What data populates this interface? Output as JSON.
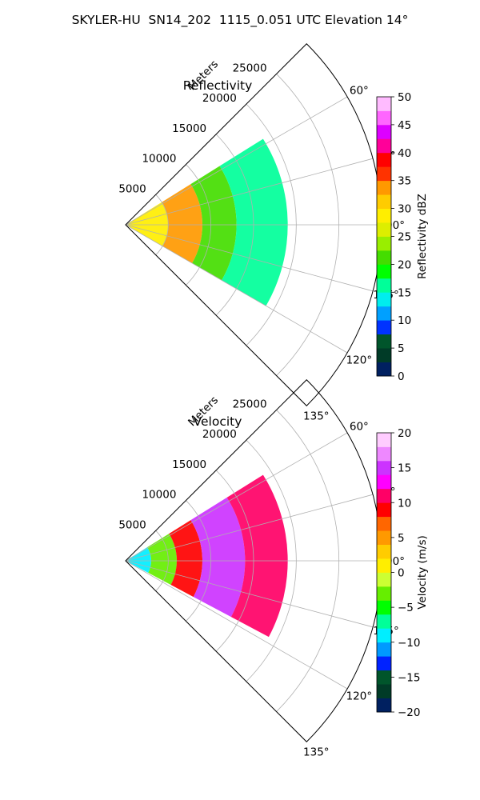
{
  "figure": {
    "suptitle": "SKYLER-HU  SN14_202  1115_0.051 UTC Elevation 14°"
  },
  "chart_data": [
    {
      "type": "polar-sector-heatmap",
      "title": "Reflectivity",
      "radial_label": "Meters",
      "radial_ticks": [
        5000,
        10000,
        15000,
        20000,
        25000
      ],
      "r_max": 30000,
      "angle_ticks": [
        "60°",
        "75°",
        "90°",
        "105°",
        "120°",
        "135°"
      ],
      "angle_tick_values": [
        60,
        75,
        90,
        105,
        120,
        135
      ],
      "sector_deg": [
        45,
        135
      ],
      "grid": true,
      "data_extent": {
        "r_max": 19000,
        "azimuth_range": [
          58,
          120
        ]
      },
      "data_summary": [
        {
          "r_range": [
            0,
            5000
          ],
          "value": 28
        },
        {
          "r_range": [
            5000,
            9000
          ],
          "value": 34
        },
        {
          "r_range": [
            9000,
            13000
          ],
          "value": 22
        },
        {
          "r_range": [
            13000,
            19000
          ],
          "value": 17
        }
      ],
      "colorbar": {
        "label": "Reflectivity dBZ",
        "ticks": [
          "0",
          "5",
          "10",
          "15",
          "20",
          "25",
          "30",
          "35",
          "40",
          "45",
          "50"
        ],
        "range": [
          0,
          50
        ],
        "colors": [
          "#002060",
          "#003b27",
          "#00552b",
          "#0033ff",
          "#00a0ff",
          "#00eeee",
          "#00ff99",
          "#00ff00",
          "#44dd00",
          "#99ee00",
          "#ddee00",
          "#ffee00",
          "#ffcc00",
          "#ff9900",
          "#ff3300",
          "#ff0000",
          "#ff0099",
          "#dd00ff",
          "#ff66ff",
          "#ffbbff"
        ]
      }
    },
    {
      "type": "polar-sector-heatmap",
      "title": "Velocity",
      "radial_label": "Meters",
      "radial_ticks": [
        5000,
        10000,
        15000,
        20000,
        25000
      ],
      "r_max": 30000,
      "angle_ticks": [
        "60°",
        "75°",
        "90°",
        "105°",
        "120°",
        "135°"
      ],
      "angle_tick_values": [
        60,
        75,
        90,
        105,
        120,
        135
      ],
      "sector_deg": [
        45,
        135
      ],
      "grid": true,
      "data_extent": {
        "r_max": 19000,
        "azimuth_range": [
          58,
          118
        ]
      },
      "data_summary": [
        {
          "r_range": [
            0,
            3000
          ],
          "value": -10
        },
        {
          "r_range": [
            3000,
            6000
          ],
          "value": -3
        },
        {
          "r_range": [
            6000,
            9000
          ],
          "value": 8
        },
        {
          "r_range": [
            9000,
            14000
          ],
          "value": 14
        },
        {
          "r_range": [
            14000,
            19000
          ],
          "value": 10
        }
      ],
      "colorbar": {
        "label": "Velocity (m/s)",
        "ticks": [
          "−20",
          "−15",
          "−10",
          "−5",
          "0",
          "5",
          "10",
          "15",
          "20"
        ],
        "range": [
          -20,
          20
        ],
        "colors": [
          "#002060",
          "#003b27",
          "#00552b",
          "#0022ff",
          "#0099ff",
          "#00eeff",
          "#00ff99",
          "#00ff00",
          "#66ee00",
          "#ccff33",
          "#ffee00",
          "#ffcc00",
          "#ff9900",
          "#ff6600",
          "#ff0000",
          "#ff0066",
          "#ff00ff",
          "#cc33ff",
          "#ee88ff",
          "#ffccff"
        ]
      }
    }
  ]
}
